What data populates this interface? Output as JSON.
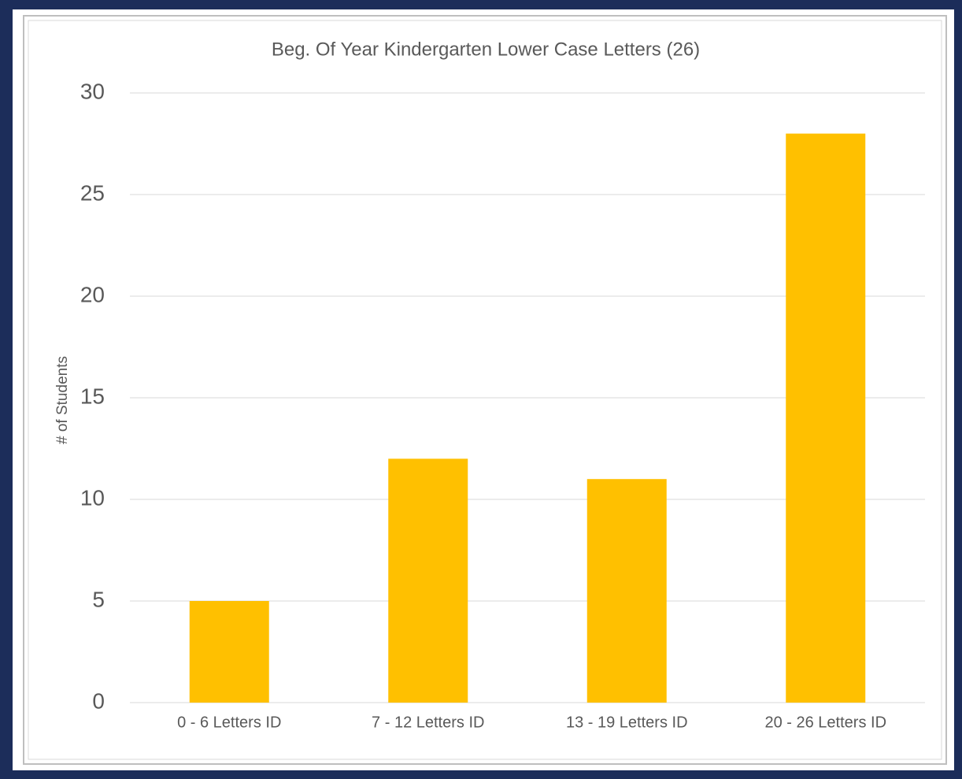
{
  "chart_data": {
    "type": "bar",
    "title": "Beg. Of Year Kindergarten Lower Case Letters (26)",
    "y_label": "# of Students",
    "categories": [
      "0 - 6 Letters ID",
      "7 - 12 Letters ID",
      "13 - 19 Letters ID",
      "20 - 26 Letters ID"
    ],
    "values": [
      5,
      12,
      11,
      28
    ],
    "color": "#ffc000",
    "ylim": [
      0,
      30
    ],
    "yticks": [
      0,
      5,
      10,
      15,
      20,
      25,
      30
    ],
    "grid": true
  }
}
